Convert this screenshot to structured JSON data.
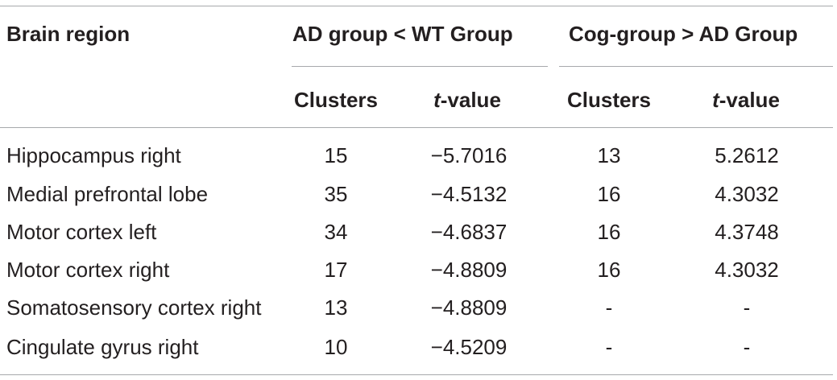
{
  "table": {
    "header": {
      "region": "Brain region",
      "group1": "AD group < WT Group",
      "group2": "Cog-group > AD Group",
      "clusters_label": "Clusters",
      "t_prefix": "t",
      "t_suffix": "-value"
    },
    "rows": [
      {
        "region": "Hippocampus right",
        "c1": "15",
        "t1": "−5.7016",
        "c2": "13",
        "t2": "5.2612"
      },
      {
        "region": "Medial prefrontal lobe",
        "c1": "35",
        "t1": "−4.5132",
        "c2": "16",
        "t2": "4.3032"
      },
      {
        "region": "Motor cortex left",
        "c1": "34",
        "t1": "−4.6837",
        "c2": "16",
        "t2": "4.3748"
      },
      {
        "region": "Motor cortex right",
        "c1": "17",
        "t1": "−4.8809",
        "c2": "16",
        "t2": "4.3032"
      },
      {
        "region": "Somatosensory cortex right",
        "c1": "13",
        "t1": "−4.8809",
        "c2": "-",
        "t2": "-"
      },
      {
        "region": "Cingulate gyrus right",
        "c1": "10",
        "t1": "−4.5209",
        "c2": "-",
        "t2": "-"
      }
    ]
  }
}
